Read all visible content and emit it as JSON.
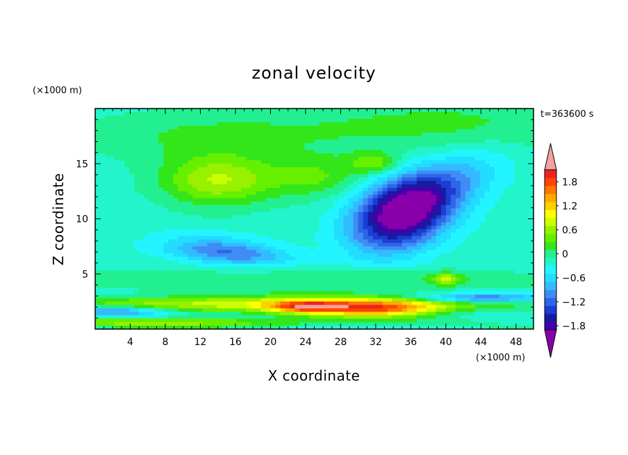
{
  "chart_data": {
    "type": "heatmap",
    "title": "zonal velocity",
    "xlabel": "X coordinate",
    "ylabel": "Z coordinate",
    "x_unit": "(×1000 m)",
    "z_unit": "(×1000 m)",
    "time_label": "t=363600 s",
    "xlim": [
      0,
      50
    ],
    "ylim": [
      0,
      20
    ],
    "x_ticks": [
      4,
      8,
      12,
      16,
      20,
      24,
      28,
      32,
      36,
      40,
      44,
      48
    ],
    "x_tick_labels": [
      "4",
      "8",
      "12",
      "16",
      "20",
      "24",
      "28",
      "32",
      "36",
      "40",
      "44",
      "48"
    ],
    "y_ticks": [
      5,
      10,
      15
    ],
    "y_tick_labels": [
      "5",
      "10",
      "15"
    ],
    "colorbar": {
      "range": [
        -2.0,
        2.0
      ],
      "step": 0.2,
      "tick_values": [
        1.8,
        1.2,
        0.6,
        0,
        -0.6,
        -1.2,
        -1.8
      ],
      "tick_labels": [
        "1.8",
        "1.2",
        "0.6",
        "0",
        "−0.6",
        "−1.2",
        "−1.8"
      ],
      "colors": [
        "#8800aa",
        "#4400aa",
        "#1a1aa0",
        "#1c3dd4",
        "#2d66e8",
        "#3f8cf5",
        "#33bbff",
        "#22ddff",
        "#22f5ff",
        "#22f5cc",
        "#22f090",
        "#33e61a",
        "#66f000",
        "#99f000",
        "#ccff00",
        "#ffff00",
        "#ffd000",
        "#ffaa00",
        "#ff7700",
        "#ff4400",
        "#ee2222",
        "#f5a0a0"
      ]
    },
    "field": {
      "background": -0.3,
      "blobs": [
        {
          "x": 35,
          "z": 10.5,
          "sx": 4.0,
          "sz": 2.2,
          "a": -1.9,
          "rot": 0.25
        },
        {
          "x": 40,
          "z": 13.0,
          "sx": 5.0,
          "sz": 1.8,
          "a": -0.6,
          "rot": 0.35
        },
        {
          "x": 15,
          "z": 7.0,
          "sx": 5.0,
          "sz": 0.9,
          "a": -0.9,
          "rot": -0.08
        },
        {
          "x": 14,
          "z": 13.5,
          "sx": 4.5,
          "sz": 1.6,
          "a": 0.9,
          "rot": 0
        },
        {
          "x": 25,
          "z": 13.8,
          "sx": 4.0,
          "sz": 1.3,
          "a": 0.5,
          "rot": 0
        },
        {
          "x": 32,
          "z": 15.0,
          "sx": 2.0,
          "sz": 0.7,
          "a": 0.6,
          "rot": 0
        },
        {
          "x": 40,
          "z": 18.5,
          "sx": 14.0,
          "sz": 2.0,
          "a": 0.35,
          "rot": 0
        },
        {
          "x": 12,
          "z": 17.5,
          "sx": 10.0,
          "sz": 1.6,
          "a": 0.3,
          "rot": 0
        },
        {
          "x": 22,
          "z": 2.3,
          "sx": 16.0,
          "sz": 0.5,
          "a": 1.1,
          "rot": 0
        },
        {
          "x": 32,
          "z": 1.8,
          "sx": 5.0,
          "sz": 0.5,
          "a": 1.6,
          "rot": 0
        },
        {
          "x": 24,
          "z": 2.0,
          "sx": 3.0,
          "sz": 0.4,
          "a": 1.2,
          "rot": 0
        },
        {
          "x": 10,
          "z": 0.6,
          "sx": 12.0,
          "sz": 0.3,
          "a": 0.8,
          "rot": 0
        },
        {
          "x": 25,
          "z": 4.5,
          "sx": 20.0,
          "sz": 0.8,
          "a": 0.35,
          "rot": 0
        },
        {
          "x": 40,
          "z": 4.5,
          "sx": 1.0,
          "sz": 0.4,
          "a": 0.7,
          "rot": 0
        },
        {
          "x": 44,
          "z": 2.8,
          "sx": 5.0,
          "sz": 0.3,
          "a": -1.1,
          "rot": 0
        },
        {
          "x": 2,
          "z": 1.6,
          "sx": 4.0,
          "sz": 0.3,
          "a": -0.9,
          "rot": 0
        }
      ]
    }
  }
}
